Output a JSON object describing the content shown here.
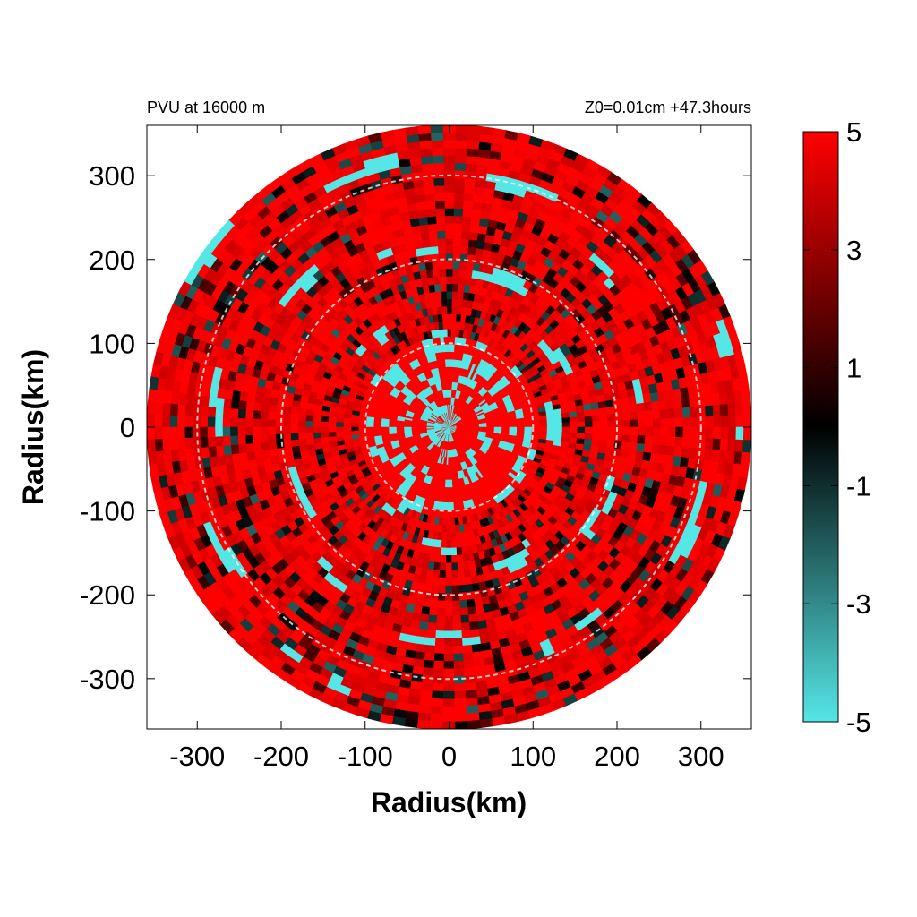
{
  "chart_data": {
    "type": "heatmap",
    "projection": "polar",
    "title_left": "PVU at 16000 m",
    "title_right": "Z0=0.01cm  +47.3hours",
    "xlabel": "Radius(km)",
    "ylabel": "Radius(km)",
    "xlim": [
      -360,
      360
    ],
    "ylim": [
      -360,
      360
    ],
    "xticks": [
      "-300",
      "-200",
      "-100",
      "0",
      "100",
      "200",
      "300"
    ],
    "yticks": [
      "300",
      "200",
      "100",
      "0",
      "-100",
      "-200",
      "-300"
    ],
    "data_extent_radius_km": 360,
    "reference_circles_km": [
      100,
      200,
      300
    ],
    "colorbar": {
      "range": [
        -5,
        5
      ],
      "ticks": [
        "5",
        "3",
        "1",
        "-1",
        "-3",
        "-5"
      ],
      "colors": {
        "low": "#55e6e6",
        "mid": "#000000",
        "high": "#ff0000"
      }
    },
    "grid": false,
    "field_summary": {
      "dominant_value": 5,
      "core_cyan_patch_center_km": [
        -15,
        5
      ],
      "description_values": "Mostly saturated positive PVU (red) with scattered negative bands (cyan) in spiral arcs"
    }
  }
}
